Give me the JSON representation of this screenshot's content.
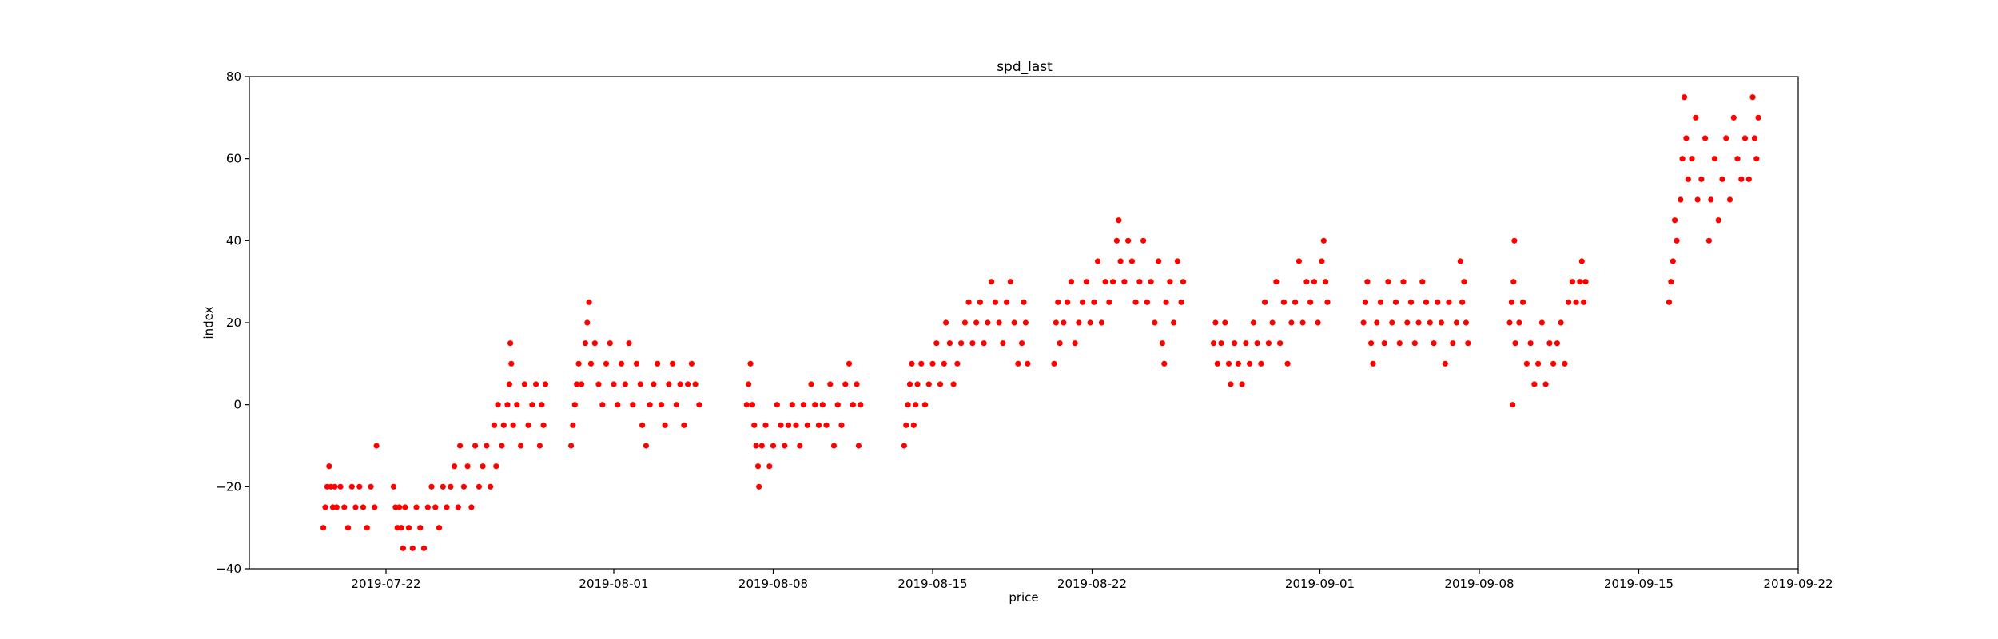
{
  "chart_data": {
    "type": "scatter",
    "title": "spd_last",
    "xlabel": "price",
    "ylabel": "index",
    "grid": false,
    "legend": "none",
    "marker_color": "#ff0000",
    "xlim": [
      "2019-07-16",
      "2019-09-22"
    ],
    "ylim": [
      -40,
      80
    ],
    "x_ticks": [
      "2019-07-22",
      "2019-08-01",
      "2019-08-08",
      "2019-08-15",
      "2019-08-22",
      "2019-09-01",
      "2019-09-08",
      "2019-09-15",
      "2019-09-22"
    ],
    "y_ticks": [
      -40,
      -20,
      0,
      20,
      40,
      60,
      80
    ],
    "points": [
      [
        "2019-07-19 06:00",
        -30
      ],
      [
        "2019-07-19 08:00",
        -25
      ],
      [
        "2019-07-19 10:00",
        -20
      ],
      [
        "2019-07-19 12:00",
        -15
      ],
      [
        "2019-07-19 14:00",
        -20
      ],
      [
        "2019-07-19 16:00",
        -25
      ],
      [
        "2019-07-19 18:00",
        -20
      ],
      [
        "2019-07-19 20:00",
        -25
      ],
      [
        "2019-07-20 00:00",
        -20
      ],
      [
        "2019-07-20 04:00",
        -25
      ],
      [
        "2019-07-20 08:00",
        -30
      ],
      [
        "2019-07-20 12:00",
        -20
      ],
      [
        "2019-07-20 16:00",
        -25
      ],
      [
        "2019-07-20 20:00",
        -20
      ],
      [
        "2019-07-21 00:00",
        -25
      ],
      [
        "2019-07-21 04:00",
        -30
      ],
      [
        "2019-07-21 08:00",
        -20
      ],
      [
        "2019-07-21 12:00",
        -25
      ],
      [
        "2019-07-21 14:00",
        -10
      ],
      [
        "2019-07-22 08:00",
        -20
      ],
      [
        "2019-07-22 10:00",
        -25
      ],
      [
        "2019-07-22 12:00",
        -30
      ],
      [
        "2019-07-22 14:00",
        -25
      ],
      [
        "2019-07-22 16:00",
        -30
      ],
      [
        "2019-07-22 18:00",
        -35
      ],
      [
        "2019-07-22 20:00",
        -25
      ],
      [
        "2019-07-23 00:00",
        -30
      ],
      [
        "2019-07-23 04:00",
        -35
      ],
      [
        "2019-07-23 08:00",
        -25
      ],
      [
        "2019-07-23 12:00",
        -30
      ],
      [
        "2019-07-23 16:00",
        -35
      ],
      [
        "2019-07-23 20:00",
        -25
      ],
      [
        "2019-07-24 00:00",
        -20
      ],
      [
        "2019-07-24 04:00",
        -25
      ],
      [
        "2019-07-24 08:00",
        -30
      ],
      [
        "2019-07-24 12:00",
        -20
      ],
      [
        "2019-07-24 16:00",
        -25
      ],
      [
        "2019-07-24 20:00",
        -20
      ],
      [
        "2019-07-25 00:00",
        -15
      ],
      [
        "2019-07-25 04:00",
        -25
      ],
      [
        "2019-07-25 06:00",
        -10
      ],
      [
        "2019-07-25 10:00",
        -20
      ],
      [
        "2019-07-25 14:00",
        -15
      ],
      [
        "2019-07-25 18:00",
        -25
      ],
      [
        "2019-07-25 22:00",
        -10
      ],
      [
        "2019-07-26 02:00",
        -20
      ],
      [
        "2019-07-26 06:00",
        -15
      ],
      [
        "2019-07-26 10:00",
        -10
      ],
      [
        "2019-07-26 14:00",
        -20
      ],
      [
        "2019-07-26 18:00",
        -5
      ],
      [
        "2019-07-26 20:00",
        -15
      ],
      [
        "2019-07-26 22:00",
        0
      ],
      [
        "2019-07-27 02:00",
        -10
      ],
      [
        "2019-07-27 04:00",
        -5
      ],
      [
        "2019-07-27 08:00",
        0
      ],
      [
        "2019-07-27 10:00",
        5
      ],
      [
        "2019-07-27 11:00",
        15
      ],
      [
        "2019-07-27 12:00",
        10
      ],
      [
        "2019-07-27 14:00",
        -5
      ],
      [
        "2019-07-27 18:00",
        0
      ],
      [
        "2019-07-27 22:00",
        -10
      ],
      [
        "2019-07-28 02:00",
        5
      ],
      [
        "2019-07-28 06:00",
        -5
      ],
      [
        "2019-07-28 10:00",
        0
      ],
      [
        "2019-07-28 14:00",
        5
      ],
      [
        "2019-07-28 18:00",
        -10
      ],
      [
        "2019-07-28 20:00",
        0
      ],
      [
        "2019-07-28 22:00",
        -5
      ],
      [
        "2019-07-29 00:00",
        5
      ],
      [
        "2019-07-30 03:00",
        -10
      ],
      [
        "2019-07-30 05:00",
        -5
      ],
      [
        "2019-07-30 07:00",
        0
      ],
      [
        "2019-07-30 09:00",
        5
      ],
      [
        "2019-07-30 11:00",
        10
      ],
      [
        "2019-07-30 14:00",
        5
      ],
      [
        "2019-07-30 18:00",
        15
      ],
      [
        "2019-07-30 20:00",
        20
      ],
      [
        "2019-07-30 22:00",
        25
      ],
      [
        "2019-07-31 00:00",
        10
      ],
      [
        "2019-07-31 04:00",
        15
      ],
      [
        "2019-07-31 08:00",
        5
      ],
      [
        "2019-07-31 12:00",
        0
      ],
      [
        "2019-07-31 16:00",
        10
      ],
      [
        "2019-07-31 20:00",
        15
      ],
      [
        "2019-08-01 00:00",
        5
      ],
      [
        "2019-08-01 04:00",
        0
      ],
      [
        "2019-08-01 08:00",
        10
      ],
      [
        "2019-08-01 12:00",
        5
      ],
      [
        "2019-08-01 16:00",
        15
      ],
      [
        "2019-08-01 20:00",
        0
      ],
      [
        "2019-08-02 00:00",
        10
      ],
      [
        "2019-08-02 04:00",
        5
      ],
      [
        "2019-08-02 06:00",
        -5
      ],
      [
        "2019-08-02 10:00",
        -10
      ],
      [
        "2019-08-02 14:00",
        0
      ],
      [
        "2019-08-02 18:00",
        5
      ],
      [
        "2019-08-02 22:00",
        10
      ],
      [
        "2019-08-03 02:00",
        0
      ],
      [
        "2019-08-03 06:00",
        -5
      ],
      [
        "2019-08-03 10:00",
        5
      ],
      [
        "2019-08-03 14:00",
        10
      ],
      [
        "2019-08-03 18:00",
        0
      ],
      [
        "2019-08-03 22:00",
        5
      ],
      [
        "2019-08-04 02:00",
        -5
      ],
      [
        "2019-08-04 06:00",
        5
      ],
      [
        "2019-08-04 10:00",
        10
      ],
      [
        "2019-08-04 14:00",
        5
      ],
      [
        "2019-08-04 18:00",
        0
      ],
      [
        "2019-08-06 20:00",
        0
      ],
      [
        "2019-08-06 22:00",
        5
      ],
      [
        "2019-08-07 00:00",
        10
      ],
      [
        "2019-08-07 02:00",
        0
      ],
      [
        "2019-08-07 04:00",
        -5
      ],
      [
        "2019-08-07 06:00",
        -10
      ],
      [
        "2019-08-07 08:00",
        -15
      ],
      [
        "2019-08-07 09:00",
        -20
      ],
      [
        "2019-08-07 12:00",
        -10
      ],
      [
        "2019-08-07 16:00",
        -5
      ],
      [
        "2019-08-07 20:00",
        -15
      ],
      [
        "2019-08-08 00:00",
        -10
      ],
      [
        "2019-08-08 04:00",
        0
      ],
      [
        "2019-08-08 08:00",
        -5
      ],
      [
        "2019-08-08 12:00",
        -10
      ],
      [
        "2019-08-08 16:00",
        -5
      ],
      [
        "2019-08-08 20:00",
        0
      ],
      [
        "2019-08-09 00:00",
        -5
      ],
      [
        "2019-08-09 04:00",
        -10
      ],
      [
        "2019-08-09 08:00",
        0
      ],
      [
        "2019-08-09 12:00",
        -5
      ],
      [
        "2019-08-09 16:00",
        5
      ],
      [
        "2019-08-09 20:00",
        0
      ],
      [
        "2019-08-10 00:00",
        -5
      ],
      [
        "2019-08-10 04:00",
        0
      ],
      [
        "2019-08-10 08:00",
        -5
      ],
      [
        "2019-08-10 12:00",
        5
      ],
      [
        "2019-08-10 16:00",
        -10
      ],
      [
        "2019-08-10 20:00",
        0
      ],
      [
        "2019-08-11 00:00",
        -5
      ],
      [
        "2019-08-11 04:00",
        5
      ],
      [
        "2019-08-11 08:00",
        10
      ],
      [
        "2019-08-11 12:00",
        0
      ],
      [
        "2019-08-11 16:00",
        5
      ],
      [
        "2019-08-11 18:00",
        -10
      ],
      [
        "2019-08-11 20:00",
        0
      ],
      [
        "2019-08-13 18:00",
        -10
      ],
      [
        "2019-08-13 20:00",
        -5
      ],
      [
        "2019-08-13 22:00",
        0
      ],
      [
        "2019-08-14 00:00",
        5
      ],
      [
        "2019-08-14 02:00",
        10
      ],
      [
        "2019-08-14 04:00",
        -5
      ],
      [
        "2019-08-14 06:00",
        0
      ],
      [
        "2019-08-14 08:00",
        5
      ],
      [
        "2019-08-14 12:00",
        10
      ],
      [
        "2019-08-14 16:00",
        0
      ],
      [
        "2019-08-14 20:00",
        5
      ],
      [
        "2019-08-15 00:00",
        10
      ],
      [
        "2019-08-15 04:00",
        15
      ],
      [
        "2019-08-15 08:00",
        5
      ],
      [
        "2019-08-15 12:00",
        10
      ],
      [
        "2019-08-15 14:00",
        20
      ],
      [
        "2019-08-15 18:00",
        15
      ],
      [
        "2019-08-15 22:00",
        5
      ],
      [
        "2019-08-16 02:00",
        10
      ],
      [
        "2019-08-16 06:00",
        15
      ],
      [
        "2019-08-16 10:00",
        20
      ],
      [
        "2019-08-16 14:00",
        25
      ],
      [
        "2019-08-16 18:00",
        15
      ],
      [
        "2019-08-16 22:00",
        20
      ],
      [
        "2019-08-17 02:00",
        25
      ],
      [
        "2019-08-17 06:00",
        15
      ],
      [
        "2019-08-17 10:00",
        20
      ],
      [
        "2019-08-17 14:00",
        30
      ],
      [
        "2019-08-17 18:00",
        25
      ],
      [
        "2019-08-17 22:00",
        20
      ],
      [
        "2019-08-18 02:00",
        15
      ],
      [
        "2019-08-18 06:00",
        25
      ],
      [
        "2019-08-18 10:00",
        30
      ],
      [
        "2019-08-18 14:00",
        20
      ],
      [
        "2019-08-18 18:00",
        10
      ],
      [
        "2019-08-18 22:00",
        15
      ],
      [
        "2019-08-19 00:00",
        25
      ],
      [
        "2019-08-19 02:00",
        20
      ],
      [
        "2019-08-19 04:00",
        10
      ],
      [
        "2019-08-20 08:00",
        10
      ],
      [
        "2019-08-20 10:00",
        20
      ],
      [
        "2019-08-20 12:00",
        25
      ],
      [
        "2019-08-20 14:00",
        15
      ],
      [
        "2019-08-20 18:00",
        20
      ],
      [
        "2019-08-20 22:00",
        25
      ],
      [
        "2019-08-21 02:00",
        30
      ],
      [
        "2019-08-21 06:00",
        15
      ],
      [
        "2019-08-21 10:00",
        20
      ],
      [
        "2019-08-21 14:00",
        25
      ],
      [
        "2019-08-21 18:00",
        30
      ],
      [
        "2019-08-21 22:00",
        20
      ],
      [
        "2019-08-22 02:00",
        25
      ],
      [
        "2019-08-22 06:00",
        35
      ],
      [
        "2019-08-22 10:00",
        20
      ],
      [
        "2019-08-22 14:00",
        30
      ],
      [
        "2019-08-22 18:00",
        25
      ],
      [
        "2019-08-22 22:00",
        30
      ],
      [
        "2019-08-23 02:00",
        40
      ],
      [
        "2019-08-23 04:00",
        45
      ],
      [
        "2019-08-23 06:00",
        35
      ],
      [
        "2019-08-23 10:00",
        30
      ],
      [
        "2019-08-23 14:00",
        40
      ],
      [
        "2019-08-23 18:00",
        35
      ],
      [
        "2019-08-23 22:00",
        25
      ],
      [
        "2019-08-24 02:00",
        30
      ],
      [
        "2019-08-24 06:00",
        40
      ],
      [
        "2019-08-24 10:00",
        25
      ],
      [
        "2019-08-24 14:00",
        30
      ],
      [
        "2019-08-24 18:00",
        20
      ],
      [
        "2019-08-24 22:00",
        35
      ],
      [
        "2019-08-25 02:00",
        15
      ],
      [
        "2019-08-25 04:00",
        10
      ],
      [
        "2019-08-25 06:00",
        25
      ],
      [
        "2019-08-25 10:00",
        30
      ],
      [
        "2019-08-25 14:00",
        20
      ],
      [
        "2019-08-25 18:00",
        35
      ],
      [
        "2019-08-25 22:00",
        25
      ],
      [
        "2019-08-26 00:00",
        30
      ],
      [
        "2019-08-27 08:00",
        15
      ],
      [
        "2019-08-27 10:00",
        20
      ],
      [
        "2019-08-27 12:00",
        10
      ],
      [
        "2019-08-27 16:00",
        15
      ],
      [
        "2019-08-27 20:00",
        20
      ],
      [
        "2019-08-28 00:00",
        10
      ],
      [
        "2019-08-28 02:00",
        5
      ],
      [
        "2019-08-28 06:00",
        15
      ],
      [
        "2019-08-28 10:00",
        10
      ],
      [
        "2019-08-28 14:00",
        5
      ],
      [
        "2019-08-28 18:00",
        15
      ],
      [
        "2019-08-28 22:00",
        10
      ],
      [
        "2019-08-29 02:00",
        20
      ],
      [
        "2019-08-29 06:00",
        15
      ],
      [
        "2019-08-29 10:00",
        10
      ],
      [
        "2019-08-29 14:00",
        25
      ],
      [
        "2019-08-29 18:00",
        15
      ],
      [
        "2019-08-29 22:00",
        20
      ],
      [
        "2019-08-30 02:00",
        30
      ],
      [
        "2019-08-30 06:00",
        15
      ],
      [
        "2019-08-30 10:00",
        25
      ],
      [
        "2019-08-30 14:00",
        10
      ],
      [
        "2019-08-30 18:00",
        20
      ],
      [
        "2019-08-30 22:00",
        25
      ],
      [
        "2019-08-31 02:00",
        35
      ],
      [
        "2019-08-31 06:00",
        20
      ],
      [
        "2019-08-31 10:00",
        30
      ],
      [
        "2019-08-31 14:00",
        25
      ],
      [
        "2019-08-31 18:00",
        30
      ],
      [
        "2019-08-31 22:00",
        20
      ],
      [
        "2019-09-01 02:00",
        35
      ],
      [
        "2019-09-01 04:00",
        40
      ],
      [
        "2019-09-01 06:00",
        30
      ],
      [
        "2019-09-01 08:00",
        25
      ],
      [
        "2019-09-02 22:00",
        20
      ],
      [
        "2019-09-03 00:00",
        25
      ],
      [
        "2019-09-03 02:00",
        30
      ],
      [
        "2019-09-03 06:00",
        15
      ],
      [
        "2019-09-03 08:00",
        10
      ],
      [
        "2019-09-03 12:00",
        20
      ],
      [
        "2019-09-03 16:00",
        25
      ],
      [
        "2019-09-03 20:00",
        15
      ],
      [
        "2019-09-04 00:00",
        30
      ],
      [
        "2019-09-04 04:00",
        20
      ],
      [
        "2019-09-04 08:00",
        25
      ],
      [
        "2019-09-04 12:00",
        15
      ],
      [
        "2019-09-04 16:00",
        30
      ],
      [
        "2019-09-04 20:00",
        20
      ],
      [
        "2019-09-05 00:00",
        25
      ],
      [
        "2019-09-05 04:00",
        15
      ],
      [
        "2019-09-05 08:00",
        20
      ],
      [
        "2019-09-05 12:00",
        30
      ],
      [
        "2019-09-05 16:00",
        25
      ],
      [
        "2019-09-05 20:00",
        20
      ],
      [
        "2019-09-06 00:00",
        15
      ],
      [
        "2019-09-06 04:00",
        25
      ],
      [
        "2019-09-06 08:00",
        20
      ],
      [
        "2019-09-06 12:00",
        10
      ],
      [
        "2019-09-06 16:00",
        25
      ],
      [
        "2019-09-06 20:00",
        15
      ],
      [
        "2019-09-07 00:00",
        20
      ],
      [
        "2019-09-07 04:00",
        35
      ],
      [
        "2019-09-07 06:00",
        25
      ],
      [
        "2019-09-07 08:00",
        30
      ],
      [
        "2019-09-07 10:00",
        20
      ],
      [
        "2019-09-07 12:00",
        15
      ],
      [
        "2019-09-09 08:00",
        20
      ],
      [
        "2019-09-09 10:00",
        25
      ],
      [
        "2019-09-09 11:00",
        0
      ],
      [
        "2019-09-09 12:00",
        30
      ],
      [
        "2019-09-09 13:00",
        40
      ],
      [
        "2019-09-09 14:00",
        15
      ],
      [
        "2019-09-09 18:00",
        20
      ],
      [
        "2019-09-09 22:00",
        25
      ],
      [
        "2019-09-10 02:00",
        10
      ],
      [
        "2019-09-10 06:00",
        15
      ],
      [
        "2019-09-10 10:00",
        5
      ],
      [
        "2019-09-10 14:00",
        10
      ],
      [
        "2019-09-10 18:00",
        20
      ],
      [
        "2019-09-10 22:00",
        5
      ],
      [
        "2019-09-11 02:00",
        15
      ],
      [
        "2019-09-11 06:00",
        10
      ],
      [
        "2019-09-11 10:00",
        15
      ],
      [
        "2019-09-11 14:00",
        20
      ],
      [
        "2019-09-11 18:00",
        10
      ],
      [
        "2019-09-11 22:00",
        25
      ],
      [
        "2019-09-12 02:00",
        30
      ],
      [
        "2019-09-12 06:00",
        25
      ],
      [
        "2019-09-12 10:00",
        30
      ],
      [
        "2019-09-12 12:00",
        35
      ],
      [
        "2019-09-12 14:00",
        25
      ],
      [
        "2019-09-12 16:00",
        30
      ],
      [
        "2019-09-16 08:00",
        25
      ],
      [
        "2019-09-16 10:00",
        30
      ],
      [
        "2019-09-16 12:00",
        35
      ],
      [
        "2019-09-16 14:00",
        45
      ],
      [
        "2019-09-16 16:00",
        40
      ],
      [
        "2019-09-16 20:00",
        50
      ],
      [
        "2019-09-16 22:00",
        60
      ],
      [
        "2019-09-17 00:00",
        75
      ],
      [
        "2019-09-17 02:00",
        65
      ],
      [
        "2019-09-17 04:00",
        55
      ],
      [
        "2019-09-17 08:00",
        60
      ],
      [
        "2019-09-17 12:00",
        70
      ],
      [
        "2019-09-17 14:00",
        50
      ],
      [
        "2019-09-17 18:00",
        55
      ],
      [
        "2019-09-17 22:00",
        65
      ],
      [
        "2019-09-18 02:00",
        40
      ],
      [
        "2019-09-18 04:00",
        50
      ],
      [
        "2019-09-18 08:00",
        60
      ],
      [
        "2019-09-18 12:00",
        45
      ],
      [
        "2019-09-18 16:00",
        55
      ],
      [
        "2019-09-18 20:00",
        65
      ],
      [
        "2019-09-19 00:00",
        50
      ],
      [
        "2019-09-19 04:00",
        70
      ],
      [
        "2019-09-19 08:00",
        60
      ],
      [
        "2019-09-19 12:00",
        55
      ],
      [
        "2019-09-19 16:00",
        65
      ],
      [
        "2019-09-19 20:00",
        55
      ],
      [
        "2019-09-20 00:00",
        75
      ],
      [
        "2019-09-20 02:00",
        65
      ],
      [
        "2019-09-20 04:00",
        60
      ],
      [
        "2019-09-20 06:00",
        70
      ]
    ]
  }
}
